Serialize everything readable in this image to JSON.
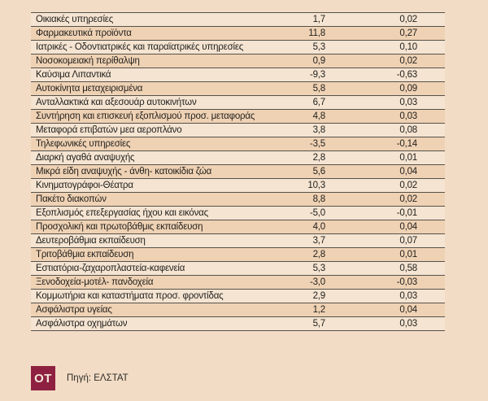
{
  "colors": {
    "page_background": "#f2dcc5",
    "row_light": "#f4e4d1",
    "row_dark": "#efd2b4",
    "line": "#56514a",
    "text": "#211f1d",
    "logo_background": "#8e2141",
    "logo_text_color": "#f5e9dc"
  },
  "footer": {
    "logo_text": "OT",
    "source": "Πηγή: ΕΛΣΤΑΤ"
  },
  "chart_data": {
    "type": "table",
    "title": "",
    "columns": [
      "category",
      "percent_change",
      "contribution"
    ],
    "rows": [
      [
        "Οικιακές υπηρεσίες",
        "1,7",
        "0,02"
      ],
      [
        "Φαρμακευτικά προϊόντα",
        "11,8",
        "0,27"
      ],
      [
        "Ιατρικές - Οδοντιατρικές και παραϊατρικές υπηρεσίες",
        "5,3",
        "0,10"
      ],
      [
        "Νοσοκομειακή περίθαλψη",
        "0,9",
        "0,02"
      ],
      [
        "Καύσιμα Λιπαντικά",
        "-9,3",
        "-0,63"
      ],
      [
        "Αυτοκίνητα μεταχειρισμένα",
        "5,8",
        "0,09"
      ],
      [
        "Ανταλλακτικά και αξεσουάρ αυτοκινήτων",
        "6,7",
        "0,03"
      ],
      [
        "Συντήρηση και επισκευή εξοπλισμού προσ. μεταφοράς",
        "4,8",
        "0,03"
      ],
      [
        "Μεταφορά επιβατών μεα αεροπλάνο",
        "3,8",
        "0,08"
      ],
      [
        "Τηλεφωνικές υπηρεσίες",
        "-3,5",
        "-0,14"
      ],
      [
        "Διαρκή αγαθά αναψυχής",
        "2,8",
        "0,01"
      ],
      [
        "Μικρά είδη αναψυχής - άνθη- κατοικίδια ζώα",
        "5,6",
        "0,04"
      ],
      [
        "Κινηματογράφοι-Θέατρα",
        "10,3",
        "0,02"
      ],
      [
        "Πακέτο διακοπών",
        "8,8",
        "0,02"
      ],
      [
        "Εξοπλισμός επεξεργασίας ήχου και εικόνας",
        "-5,0",
        "-0,01"
      ],
      [
        "Προσχολική και πρωτοβάθμις εκπαίδευση",
        "4,0",
        "0,04"
      ],
      [
        "Δευτεροβάθμια εκπαίδευση",
        "3,7",
        "0,07"
      ],
      [
        "Τριτοβάθμια εκπαίδευση",
        "2,8",
        "0,01"
      ],
      [
        "Εστιατόρια-ζαχαροπλαστεία-καφενεία",
        "5,3",
        "0,58"
      ],
      [
        "Ξενοδοχεία-μοτέλ- πανδοχεία",
        "-3,0",
        "-0,03"
      ],
      [
        "Κομμωτήρια και καταστήματα προσ. φροντίδας",
        "2,9",
        "0,03"
      ],
      [
        "Ασφάλιστρα υγείας",
        "1,2",
        "0,04"
      ],
      [
        "Ασφάλιστρα οχημάτων",
        "5,7",
        "0,03"
      ]
    ],
    "layout_hints": {
      "striped": true,
      "stripe_pattern": "even rows darker (1-based row 2,4,6...)",
      "value_columns_alignment": "right",
      "grid": "horizontal lines only"
    }
  }
}
